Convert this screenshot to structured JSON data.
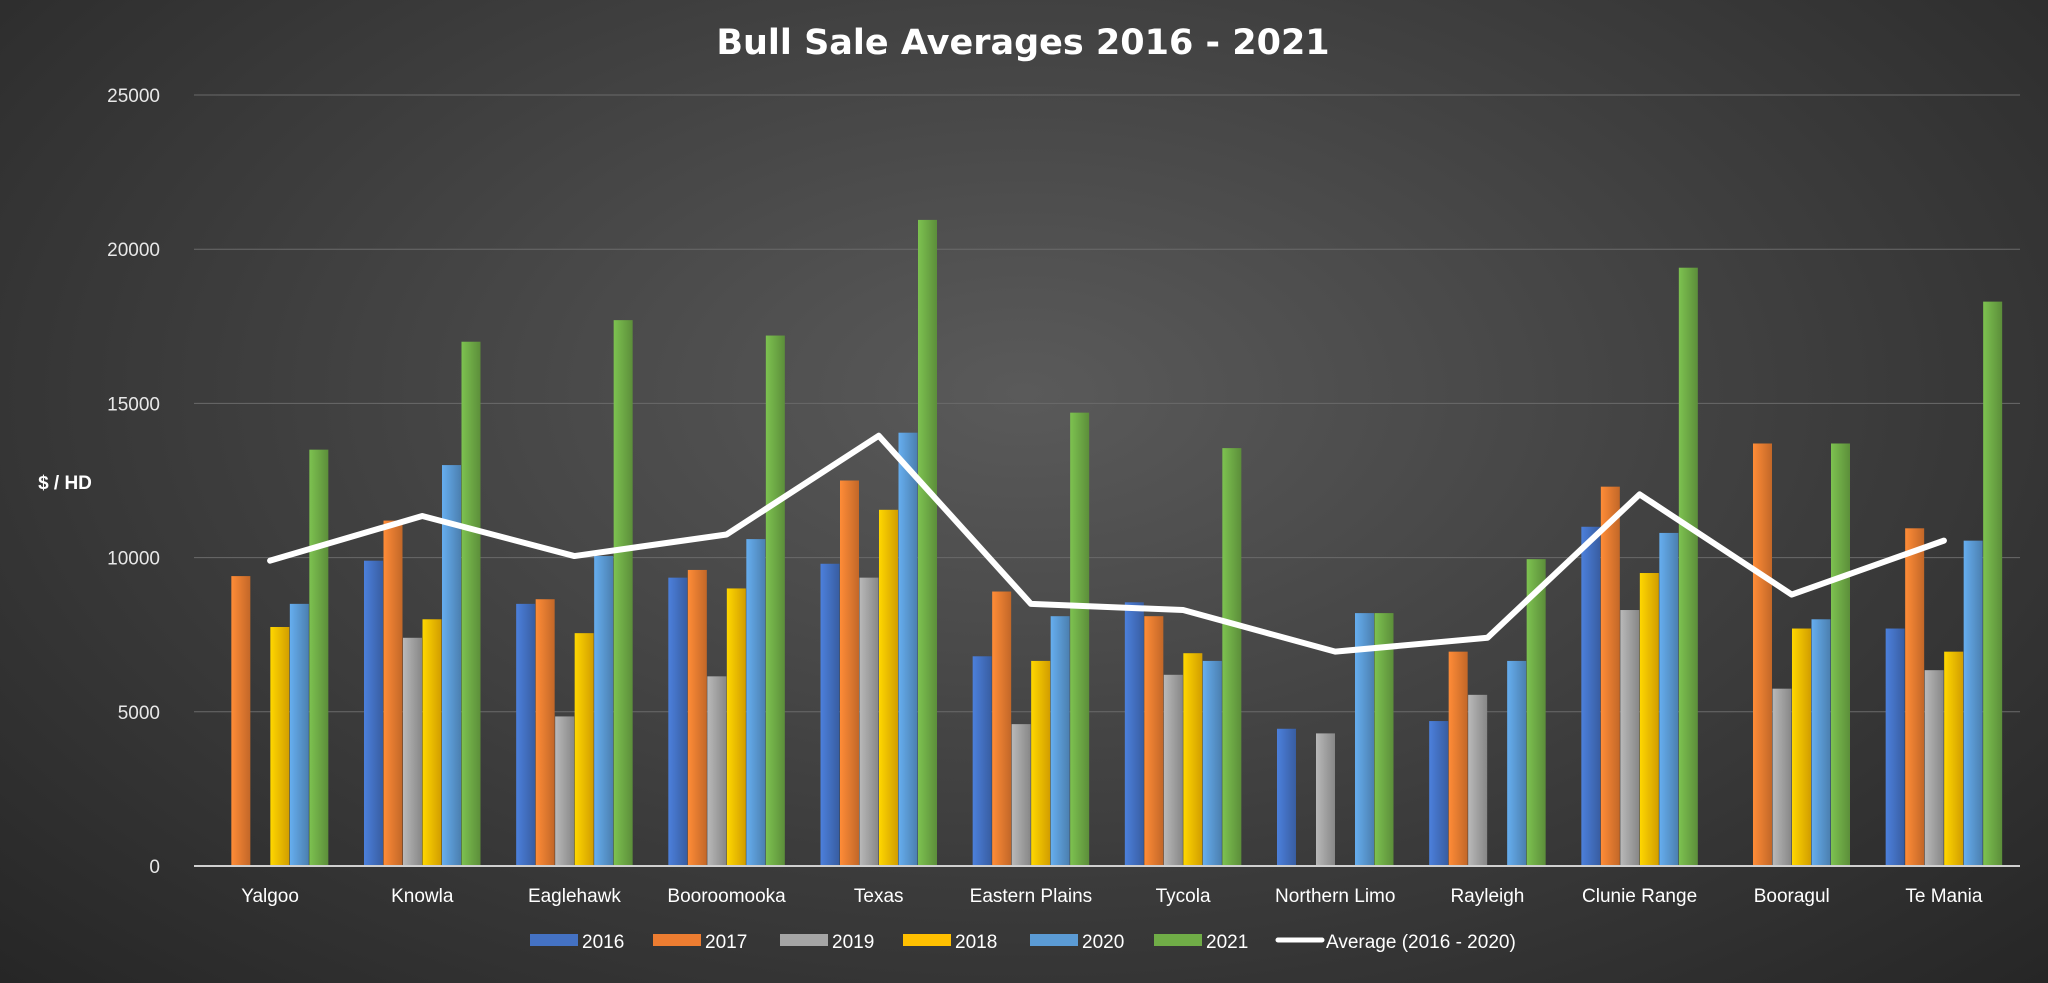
{
  "chart_data": {
    "type": "bar",
    "title": "Bull Sale Averages 2016 - 2021",
    "ylabel": "$ / HD",
    "xlabel": "",
    "ylim": [
      0,
      25000
    ],
    "yticks": [
      0,
      5000,
      10000,
      15000,
      20000,
      25000
    ],
    "grid": true,
    "legend_position": "bottom",
    "categories": [
      "Yalgoo",
      "Knowla",
      "Eaglehawk",
      "Booroomooka",
      "Texas",
      "Eastern Plains",
      "Tycola",
      "Northern Limo",
      "Rayleigh",
      "Clunie Range",
      "Booragul",
      "Te Mania"
    ],
    "series": [
      {
        "name": "2016",
        "color": "#4472c4",
        "values": [
          null,
          9900,
          8500,
          9350,
          9800,
          6800,
          8550,
          4450,
          4700,
          11000,
          null,
          7700
        ]
      },
      {
        "name": "2017",
        "color": "#ed7d31",
        "values": [
          9400,
          11200,
          8650,
          9600,
          12500,
          8900,
          8100,
          null,
          6950,
          12300,
          13700,
          10950
        ]
      },
      {
        "name": "2019",
        "color": "#a5a5a5",
        "values": [
          null,
          7400,
          4850,
          6150,
          9350,
          4600,
          6200,
          4300,
          5550,
          8300,
          5750,
          6350
        ]
      },
      {
        "name": "2018",
        "color": "#ffc000",
        "values": [
          7750,
          8000,
          7550,
          9000,
          11550,
          6650,
          6900,
          null,
          null,
          9500,
          7700,
          6950
        ]
      },
      {
        "name": "2020",
        "color": "#5b9bd5",
        "values": [
          8500,
          13000,
          10050,
          10600,
          14050,
          8100,
          6650,
          8200,
          6650,
          10800,
          8000,
          10550
        ]
      },
      {
        "name": "2021",
        "color": "#70ad47",
        "values": [
          13500,
          17000,
          17700,
          17200,
          20950,
          14700,
          13550,
          8200,
          9950,
          19400,
          13700,
          18300
        ]
      }
    ],
    "line_series": {
      "name": "Average (2016 - 2020)",
      "color": "#ffffff",
      "values": [
        9900,
        11350,
        10050,
        10750,
        13950,
        8500,
        8300,
        6950,
        7400,
        12050,
        8800,
        10550
      ]
    }
  }
}
